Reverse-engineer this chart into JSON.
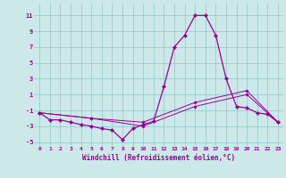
{
  "title": "",
  "xlabel": "Windchill (Refroidissement éolien,°C)",
  "ylabel": "",
  "background_color": "#cce8e8",
  "grid_color": "#99cccc",
  "line_color": "#990099",
  "xlim": [
    -0.5,
    23.5
  ],
  "ylim": [
    -5.5,
    12.5
  ],
  "xticks": [
    0,
    1,
    2,
    3,
    4,
    5,
    6,
    7,
    8,
    9,
    10,
    11,
    12,
    13,
    14,
    15,
    16,
    17,
    18,
    19,
    20,
    21,
    22,
    23
  ],
  "yticks": [
    -5,
    -3,
    -1,
    1,
    3,
    5,
    7,
    9,
    11
  ],
  "series1_x": [
    0,
    1,
    2,
    3,
    4,
    5,
    6,
    7,
    8,
    9,
    10,
    11,
    12,
    13,
    14,
    15,
    16,
    17,
    18,
    19,
    20,
    21,
    22,
    23
  ],
  "series1_y": [
    -1.3,
    -2.2,
    -2.2,
    -2.5,
    -2.8,
    -3.0,
    -3.3,
    -3.5,
    -4.7,
    -3.3,
    -2.8,
    -2.4,
    2.0,
    7.0,
    8.5,
    11.0,
    11.0,
    8.5,
    3.0,
    -0.5,
    -0.7,
    -1.3,
    -1.5,
    -2.5
  ],
  "series2_x": [
    0,
    5,
    10,
    15,
    20,
    23
  ],
  "series2_y": [
    -1.3,
    -2.0,
    -2.5,
    0.0,
    1.5,
    -2.5
  ],
  "series3_x": [
    0,
    5,
    10,
    15,
    20,
    23
  ],
  "series3_y": [
    -1.3,
    -2.0,
    -3.0,
    -0.5,
    1.0,
    -2.5
  ]
}
